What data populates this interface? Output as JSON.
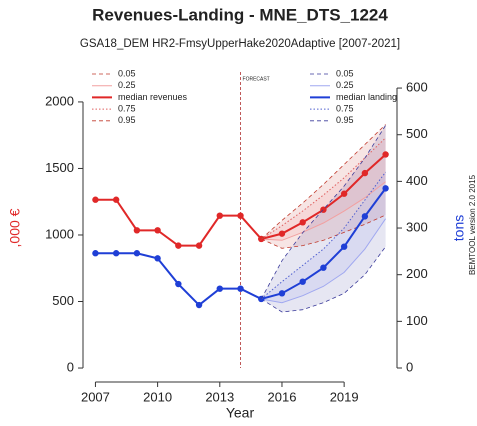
{
  "chart_data": {
    "type": "line",
    "title": "Revenues-Landing - MNE_DTS_1224",
    "subtitle": "GSA18_DEM HR2-FmsyUpperHake2020Adaptive [2007-2021]",
    "x_label": "Year",
    "y_label": ",000 €",
    "y2_label": "tons",
    "annotation": "FORECAST",
    "forecast_start": 2014,
    "watermark": "BEMTOOL version 2.0 2015",
    "x": [
      2007,
      2008,
      2009,
      2010,
      2011,
      2012,
      2013,
      2014,
      2015,
      2016,
      2017,
      2018,
      2019,
      2020,
      2021
    ],
    "xlim": [
      2006.4,
      2021.55
    ],
    "xticks": [
      2007,
      2010,
      2013,
      2016,
      2019
    ],
    "ylim": [
      -105,
      2255
    ],
    "yticks": [
      0,
      500,
      1000,
      1500,
      2000
    ],
    "y2lim": [
      -30,
      643
    ],
    "y2ticks": [
      0,
      100,
      200,
      300,
      400,
      500,
      600
    ],
    "series": [
      {
        "name": "0.05",
        "color": "#c0392b",
        "style": "dashed",
        "axis": "y",
        "values": [
          null,
          null,
          null,
          null,
          null,
          null,
          null,
          null,
          970,
          900,
          920,
          960,
          1020,
          1080,
          1150
        ]
      },
      {
        "name": "0.25",
        "color": "#f2a0a0",
        "style": "solid",
        "axis": "y",
        "values": [
          null,
          null,
          null,
          null,
          null,
          null,
          null,
          null,
          970,
          960,
          1020,
          1090,
          1180,
          1280,
          1400
        ]
      },
      {
        "name": "median revenues",
        "color": "#e02828",
        "style": "median",
        "axis": "y",
        "values": [
          1265,
          1265,
          1035,
          1035,
          920,
          920,
          1145,
          1145,
          970,
          1010,
          1095,
          1190,
          1310,
          1465,
          1605
        ]
      },
      {
        "name": "0.75",
        "color": "#e06060",
        "style": "dotted",
        "axis": "y",
        "values": [
          null,
          null,
          null,
          null,
          null,
          null,
          null,
          null,
          970,
          1070,
          1180,
          1300,
          1430,
          1580,
          1730
        ]
      },
      {
        "name": "0.95",
        "color": "#c0392b",
        "style": "dashed",
        "axis": "y",
        "values": [
          null,
          null,
          null,
          null,
          null,
          null,
          null,
          null,
          970,
          1110,
          1240,
          1380,
          1530,
          1680,
          1830
        ]
      },
      {
        "name": "0.05",
        "color": "#3a3a9a",
        "style": "dashed",
        "axis": "y2",
        "values": [
          null,
          null,
          null,
          null,
          null,
          null,
          null,
          null,
          148,
          120,
          125,
          140,
          160,
          200,
          260
        ]
      },
      {
        "name": "0.25",
        "color": "#a0a8f0",
        "style": "solid",
        "axis": "y2",
        "values": [
          null,
          null,
          null,
          null,
          null,
          null,
          null,
          null,
          148,
          140,
          155,
          175,
          205,
          255,
          320
        ]
      },
      {
        "name": "median landing",
        "color": "#1f3fd6",
        "style": "median",
        "axis": "y2",
        "values": [
          246,
          246,
          246,
          235,
          180,
          135,
          170,
          170,
          148,
          160,
          185,
          215,
          260,
          325,
          385
        ]
      },
      {
        "name": "0.75",
        "color": "#5060d0",
        "style": "dotted",
        "axis": "y2",
        "values": [
          null,
          null,
          null,
          null,
          null,
          null,
          null,
          null,
          148,
          185,
          220,
          255,
          300,
          360,
          420
        ]
      },
      {
        "name": "0.95",
        "color": "#3a3a9a",
        "style": "dashed",
        "axis": "y2",
        "values": [
          null,
          null,
          null,
          null,
          null,
          null,
          null,
          null,
          148,
          230,
          290,
          340,
          390,
          450,
          520
        ]
      }
    ]
  }
}
